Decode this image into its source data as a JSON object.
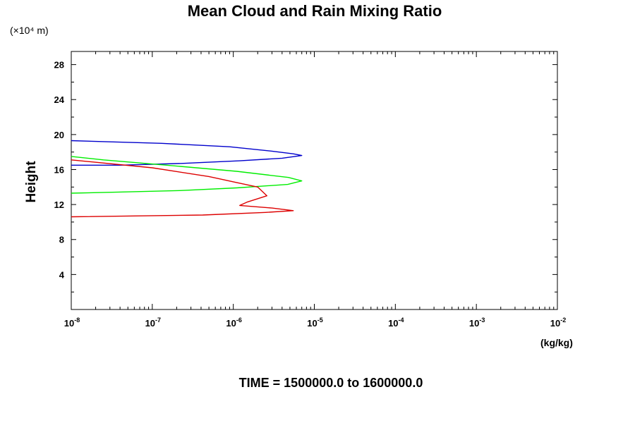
{
  "chart_data": {
    "type": "line",
    "title": "Mean Cloud and Rain Mixing Ratio",
    "ylabel": "Height",
    "y_scale_note": "(×10⁴ m)",
    "xunits": "(kg/kg)",
    "footer": "TIME = 1500000.0 to 1600000.0",
    "x_scale": "log",
    "xlim": [
      1e-08,
      0.01
    ],
    "ylim": [
      0,
      29.5
    ],
    "x_ticks": [
      {
        "base": "10",
        "exp": "-8",
        "value": 1e-08
      },
      {
        "base": "10",
        "exp": "-7",
        "value": 1e-07
      },
      {
        "base": "10",
        "exp": "-6",
        "value": 1e-06
      },
      {
        "base": "10",
        "exp": "-5",
        "value": 1e-05
      },
      {
        "base": "10",
        "exp": "-4",
        "value": 0.0001
      },
      {
        "base": "10",
        "exp": "-3",
        "value": 0.001
      },
      {
        "base": "10",
        "exp": "-2",
        "value": 0.01
      }
    ],
    "y_ticks": [
      "4",
      "8",
      "12",
      "16",
      "20",
      "24",
      "28"
    ],
    "series": [
      {
        "color": "#0000cc",
        "points": [
          [
            1e-08,
            19.3
          ],
          [
            1.3e-07,
            19.0
          ],
          [
            9e-07,
            18.6
          ],
          [
            3e-06,
            18.1
          ],
          [
            5.5e-06,
            17.8
          ],
          [
            7e-06,
            17.6
          ],
          [
            4e-06,
            17.3
          ],
          [
            1.2e-06,
            17.0
          ],
          [
            2.3e-07,
            16.7
          ],
          [
            4e-08,
            16.5
          ],
          [
            1e-08,
            16.5
          ]
        ]
      },
      {
        "color": "#00ee00",
        "points": [
          [
            1e-08,
            17.5
          ],
          [
            2.5e-08,
            17.1
          ],
          [
            1.5e-07,
            16.5
          ],
          [
            1.1e-06,
            15.8
          ],
          [
            4.8e-06,
            15.1
          ],
          [
            7e-06,
            14.7
          ],
          [
            4.7e-06,
            14.3
          ],
          [
            1.1e-06,
            13.9
          ],
          [
            2.2e-07,
            13.6
          ],
          [
            3.2e-08,
            13.4
          ],
          [
            1e-08,
            13.3
          ]
        ]
      },
      {
        "color": "#dd0000",
        "points": [
          [
            1e-08,
            17.1
          ],
          [
            1e-07,
            16.2
          ],
          [
            5e-07,
            15.2
          ],
          [
            1e-06,
            14.6
          ],
          [
            2e-06,
            14.0
          ],
          [
            2.6e-06,
            13.0
          ],
          [
            1.5e-06,
            12.3
          ],
          [
            1.2e-06,
            11.9
          ],
          [
            3e-06,
            11.6
          ],
          [
            5.5e-06,
            11.3
          ],
          [
            2.5e-06,
            11.1
          ],
          [
            4.2e-07,
            10.8
          ],
          [
            1e-08,
            10.6
          ]
        ]
      }
    ]
  }
}
